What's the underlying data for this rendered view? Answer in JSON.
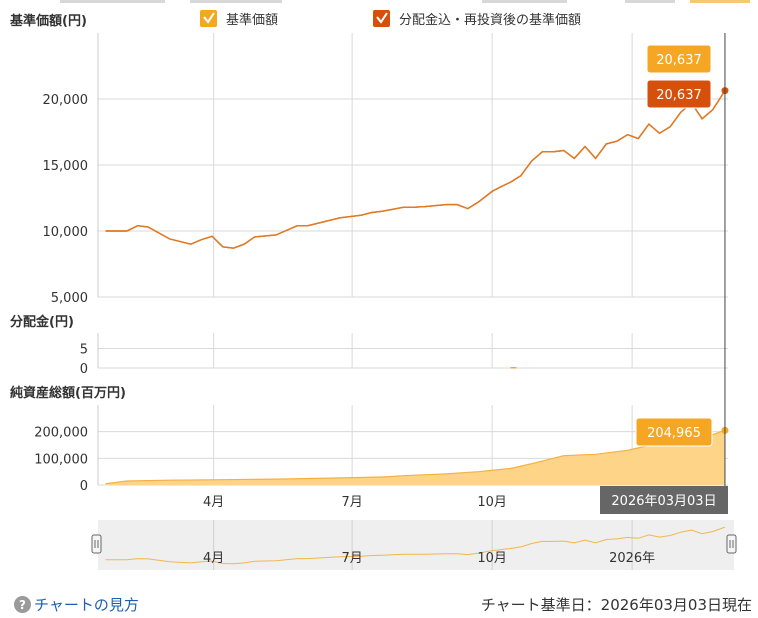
{
  "colors": {
    "nav_line": "#d4500c",
    "total_return_line": "#e07b22",
    "nav_badge": "#f5a623",
    "total_return_badge": "#d4500c",
    "assets_fill": "#fdd488",
    "assets_line": "#f5b042",
    "grid": "#d9d9d9",
    "tooltip_bg": "#666666",
    "navigator_line": "#f0b84a",
    "navigator_bg": "#eeeeee"
  },
  "legend": [
    {
      "label": "基準価額",
      "color": "#f5a623",
      "checked": true,
      "icon": "check-icon"
    },
    {
      "label": "分配金込・再投資後の基準価額",
      "color": "#d4500c",
      "checked": true,
      "icon": "check-icon"
    }
  ],
  "chart_data": [
    {
      "type": "line",
      "title": "基準価額(円)",
      "ylim": [
        5000,
        25000
      ],
      "yticks": [
        5000,
        10000,
        15000,
        20000
      ],
      "ytick_labels": [
        "5,000",
        "10,000",
        "15,000",
        "20,000"
      ],
      "xlim": [
        "2025-01-15",
        "2026-03-05"
      ],
      "xticks": [
        "2025-04-01",
        "2025-07-01",
        "2025-10-01",
        "2026-01-01"
      ],
      "grid": true,
      "x": [
        "2025-01-20",
        "2025-02-03",
        "2025-02-10",
        "2025-02-17",
        "2025-03-03",
        "2025-03-17",
        "2025-03-24",
        "2025-03-31",
        "2025-04-07",
        "2025-04-14",
        "2025-04-21",
        "2025-04-28",
        "2025-05-12",
        "2025-05-26",
        "2025-06-02",
        "2025-06-16",
        "2025-06-23",
        "2025-07-07",
        "2025-07-14",
        "2025-07-21",
        "2025-08-04",
        "2025-08-11",
        "2025-08-18",
        "2025-09-01",
        "2025-09-08",
        "2025-09-15",
        "2025-09-22",
        "2025-10-01",
        "2025-10-06",
        "2025-10-13",
        "2025-10-20",
        "2025-10-27",
        "2025-11-03",
        "2025-11-10",
        "2025-11-17",
        "2025-11-24",
        "2025-12-01",
        "2025-12-08",
        "2025-12-15",
        "2025-12-22",
        "2025-12-29",
        "2026-01-05",
        "2026-01-12",
        "2026-01-19",
        "2026-01-26",
        "2026-02-02",
        "2026-02-09",
        "2026-02-16",
        "2026-02-23",
        "2026-03-03"
      ],
      "series": [
        {
          "name": "分配金込・再投資後の基準価額",
          "values": [
            10000,
            10000,
            10400,
            10300,
            9400,
            9000,
            9350,
            9600,
            8800,
            8700,
            9000,
            9550,
            9700,
            10400,
            10400,
            10800,
            11000,
            11200,
            11400,
            11500,
            11800,
            11800,
            11850,
            12000,
            12000,
            11700,
            12200,
            13000,
            13300,
            13700,
            14200,
            15300,
            16000,
            16000,
            16100,
            15500,
            16400,
            15500,
            16600,
            16800,
            17300,
            17000,
            18100,
            17400,
            17900,
            19000,
            19700,
            18500,
            19200,
            20637
          ]
        },
        {
          "name": "基準価額",
          "values": [
            10000,
            10000,
            10400,
            10300,
            9400,
            9000,
            9350,
            9600,
            8800,
            8700,
            9000,
            9550,
            9700,
            10400,
            10400,
            10800,
            11000,
            11200,
            11400,
            11500,
            11800,
            11800,
            11850,
            12000,
            12000,
            11700,
            12200,
            13000,
            13300,
            13700,
            14200,
            15300,
            16000,
            16000,
            16100,
            15500,
            16400,
            15500,
            16600,
            16800,
            17300,
            17000,
            18100,
            17400,
            17900,
            19000,
            19700,
            18500,
            19200,
            20637
          ]
        }
      ],
      "last_labels": {
        "nav": "20,637",
        "total_return": "20,637"
      }
    },
    {
      "type": "bar",
      "title": "分配金(円)",
      "ylim": [
        0,
        9
      ],
      "yticks": [
        0,
        5
      ],
      "ytick_labels": [
        "0",
        "5"
      ],
      "grid": true,
      "x": [
        "2025-10-15"
      ],
      "values": [
        0
      ]
    },
    {
      "type": "area",
      "title": "純資産総額(百万円)",
      "ylim": [
        0,
        300000
      ],
      "yticks": [
        0,
        100000,
        200000
      ],
      "ytick_labels": [
        "0",
        "100,000",
        "200,000"
      ],
      "grid": true,
      "x": [
        "2025-01-20",
        "2025-02-03",
        "2025-03-03",
        "2025-04-07",
        "2025-05-12",
        "2025-06-16",
        "2025-07-21",
        "2025-08-04",
        "2025-09-01",
        "2025-09-22",
        "2025-10-13",
        "2025-10-27",
        "2025-11-17",
        "2025-12-08",
        "2025-12-29",
        "2026-01-12",
        "2026-01-26",
        "2026-02-16",
        "2026-03-03"
      ],
      "values": [
        5000,
        15000,
        18000,
        20000,
        22000,
        26000,
        30000,
        35000,
        42000,
        50000,
        62000,
        80000,
        110000,
        115000,
        130000,
        148000,
        158000,
        175000,
        204965
      ],
      "last_label": "204,965"
    }
  ],
  "xaxis_labels": [
    "4月",
    "7月",
    "10月"
  ],
  "tooltip_date": "2026年03月03日",
  "navigator": {
    "labels": [
      "4月",
      "7月",
      "10月",
      "2026年"
    ],
    "handle_left": "handle-icon",
    "handle_right": "handle-icon"
  },
  "footer": {
    "help_icon": "?",
    "help_link": "チャートの見方",
    "base_date": "チャート基準日：2026年03月03日現在"
  }
}
